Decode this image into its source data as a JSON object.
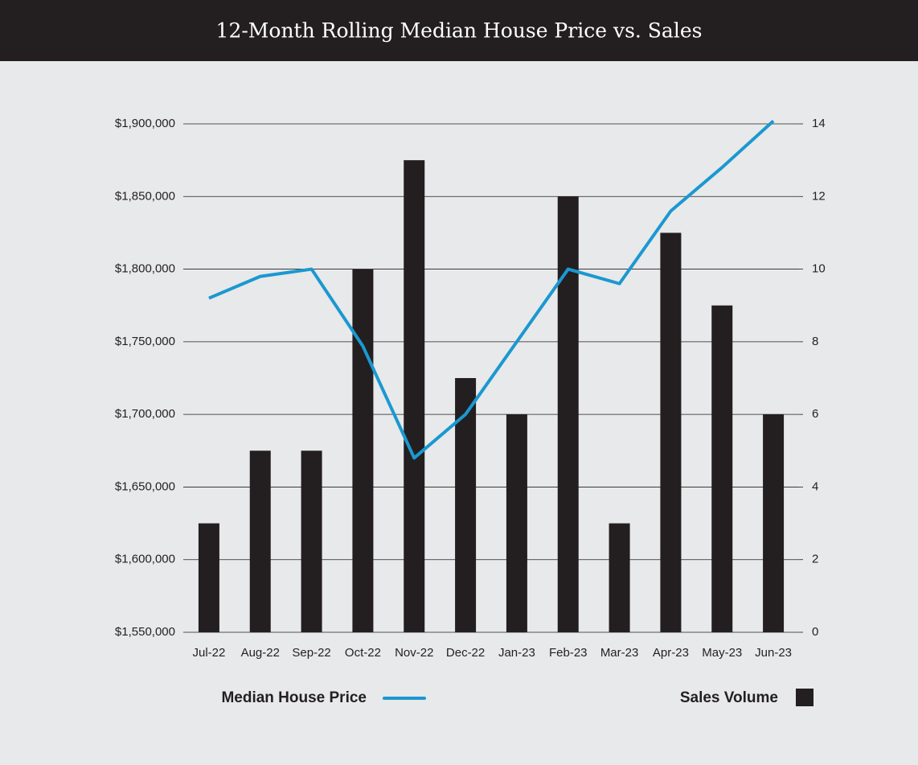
{
  "chart_data": {
    "type": "bar",
    "title": "12-Month Rolling Median House Price vs. Sales",
    "categories": [
      "Jul-22",
      "Aug-22",
      "Sep-22",
      "Oct-22",
      "Nov-22",
      "Dec-22",
      "Jan-23",
      "Feb-23",
      "Mar-23",
      "Apr-23",
      "May-23",
      "Jun-23"
    ],
    "series": [
      {
        "name": "Median House Price",
        "type": "line",
        "axis": "y",
        "color": "#1b98d1",
        "values": [
          1780000,
          1795000,
          1800000,
          1747000,
          1670000,
          1700000,
          1750000,
          1800000,
          1790000,
          1840000,
          1870000,
          1902000
        ]
      },
      {
        "name": "Sales Volume",
        "type": "bar",
        "axis": "y2",
        "color": "#231f20",
        "values": [
          3,
          5,
          5,
          10,
          13,
          7,
          6,
          12,
          3,
          11,
          9,
          6
        ]
      }
    ],
    "ylim": [
      1550000,
      1900000
    ],
    "yticks": [
      {
        "value": 1550000,
        "label": "$1,550,000"
      },
      {
        "value": 1600000,
        "label": "$1,600,000"
      },
      {
        "value": 1650000,
        "label": "$1,650,000"
      },
      {
        "value": 1700000,
        "label": "$1,700,000"
      },
      {
        "value": 1750000,
        "label": "$1,750,000"
      },
      {
        "value": 1800000,
        "label": "$1,800,000"
      },
      {
        "value": 1850000,
        "label": "$1,850,000"
      },
      {
        "value": 1900000,
        "label": "$1,900,000"
      }
    ],
    "y2lim": [
      0,
      14
    ],
    "y2ticks": [
      0,
      2,
      4,
      6,
      8,
      10,
      12,
      14
    ],
    "grid": true
  }
}
